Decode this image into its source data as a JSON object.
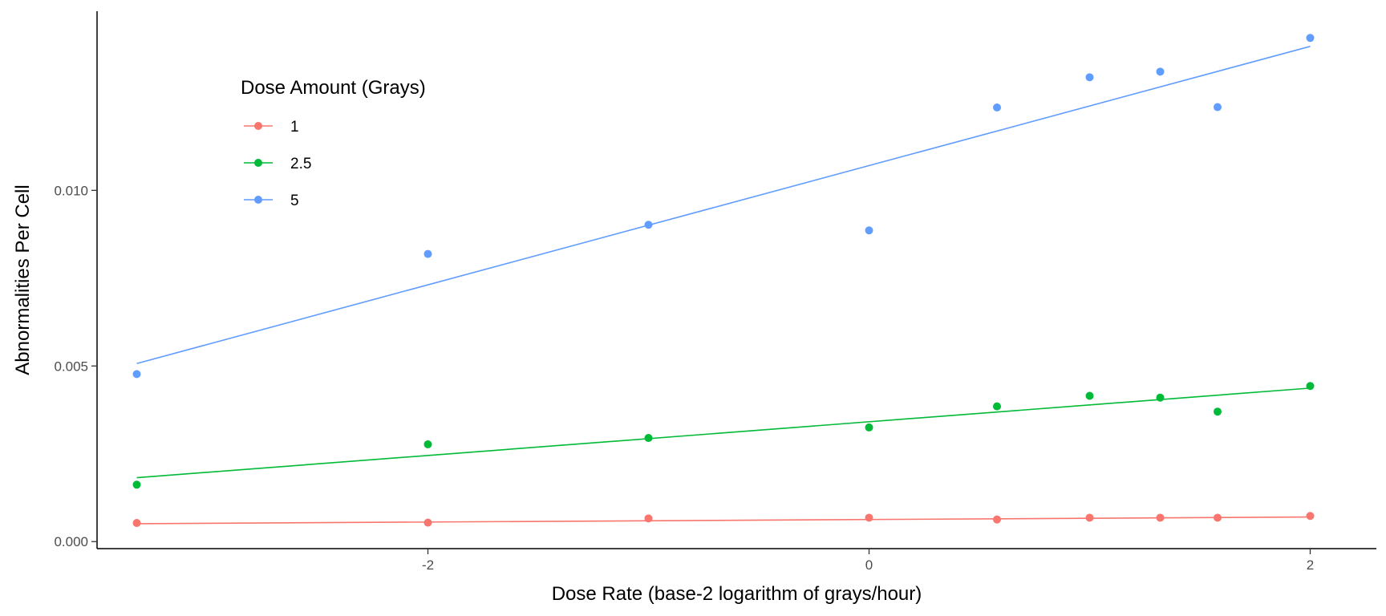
{
  "chart_data": {
    "type": "scatter",
    "title": "",
    "xlabel": "Dose Rate (base-2 logarithm of grays/hour)",
    "ylabel": "Abnormalities Per Cell",
    "xlim": [
      -3.5,
      2.3
    ],
    "ylim": [
      -0.0002,
      0.0151
    ],
    "x_ticks": [
      -2,
      0,
      2
    ],
    "x_tick_labels": [
      "-2",
      "0",
      "2"
    ],
    "y_ticks": [
      0.0,
      0.005,
      0.01
    ],
    "y_tick_labels": [
      "0.000",
      "0.005",
      "0.010"
    ],
    "grid": false,
    "legend": {
      "title": "Dose Amount (Grays)",
      "position": "top-left"
    },
    "series": [
      {
        "name": "1",
        "color": "#F8766D",
        "points": [
          {
            "x": -3.32,
            "y": 0.00053
          },
          {
            "x": -2,
            "y": 0.00054
          },
          {
            "x": -1,
            "y": 0.00066
          },
          {
            "x": 0,
            "y": 0.00068
          },
          {
            "x": 0.58,
            "y": 0.00063
          },
          {
            "x": 1,
            "y": 0.00068
          },
          {
            "x": 1.32,
            "y": 0.00068
          },
          {
            "x": 1.58,
            "y": 0.00068
          },
          {
            "x": 2,
            "y": 0.00073
          }
        ],
        "fit": {
          "x": [
            -3.32,
            2
          ],
          "y": [
            0.00051,
            0.0007
          ]
        }
      },
      {
        "name": "2.5",
        "color": "#00BA38",
        "points": [
          {
            "x": -3.32,
            "y": 0.00162
          },
          {
            "x": -2,
            "y": 0.00277
          },
          {
            "x": -1,
            "y": 0.00295
          },
          {
            "x": 0,
            "y": 0.00325
          },
          {
            "x": 0.58,
            "y": 0.00385
          },
          {
            "x": 1,
            "y": 0.00415
          },
          {
            "x": 1.32,
            "y": 0.0041
          },
          {
            "x": 1.58,
            "y": 0.0037
          },
          {
            "x": 2,
            "y": 0.00443
          }
        ],
        "fit": {
          "x": [
            -3.32,
            2
          ],
          "y": [
            0.00182,
            0.00437
          ]
        }
      },
      {
        "name": "5",
        "color": "#619CFF",
        "points": [
          {
            "x": -3.32,
            "y": 0.00477
          },
          {
            "x": -2,
            "y": 0.00819
          },
          {
            "x": -1,
            "y": 0.00902
          },
          {
            "x": 0,
            "y": 0.00886
          },
          {
            "x": 0.58,
            "y": 0.01236
          },
          {
            "x": 1,
            "y": 0.01322
          },
          {
            "x": 1.32,
            "y": 0.01338
          },
          {
            "x": 1.58,
            "y": 0.01237
          },
          {
            "x": 2,
            "y": 0.01434
          }
        ],
        "fit": {
          "x": [
            -3.32,
            2
          ],
          "y": [
            0.00507,
            0.0141
          ]
        }
      }
    ]
  }
}
